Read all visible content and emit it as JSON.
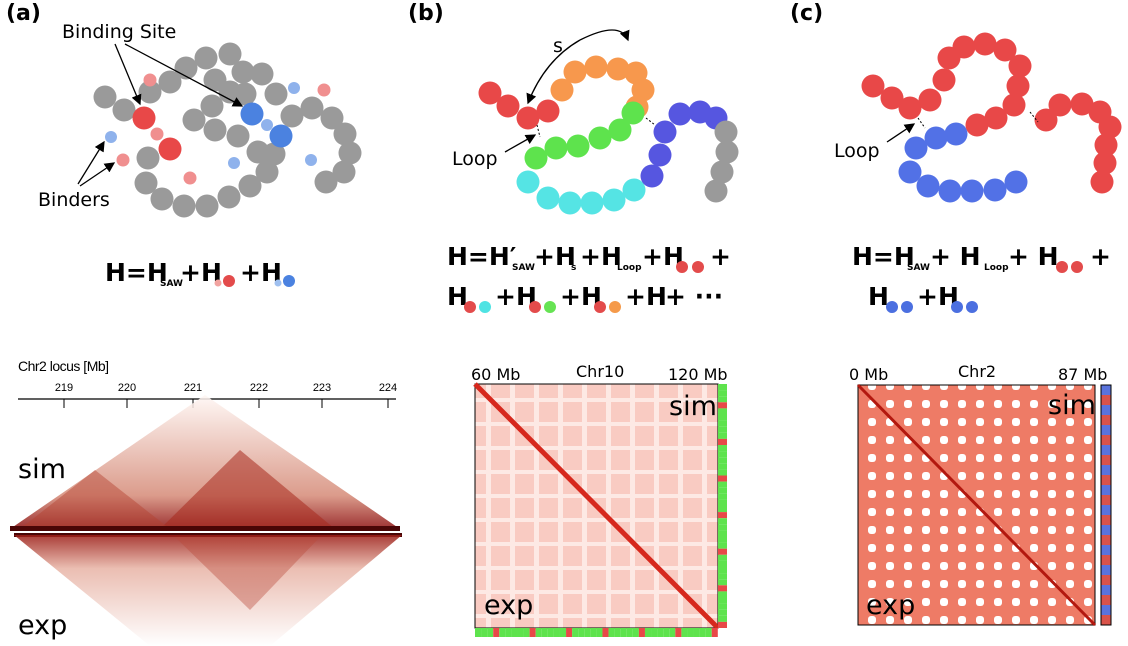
{
  "panel_a": {
    "label": "(a)",
    "binding_site": "Binding Site",
    "binders": "Binders",
    "formula": [
      "H=H",
      "SAW",
      "+H",
      "+H"
    ],
    "axis_title": "Chr2 locus [Mb]",
    "ticks": [
      "219",
      "220",
      "221",
      "222",
      "223",
      "224"
    ],
    "sim": "sim",
    "exp": "exp"
  },
  "panel_b": {
    "label": "(b)",
    "s": "s",
    "loop": "Loop",
    "formula_1": [
      "H=H′",
      "SAW",
      "+H",
      "s",
      "+H",
      "Loop",
      "+H",
      "+"
    ],
    "formula_2": [
      "H",
      "+H",
      "+H",
      "+H",
      "+ ···"
    ],
    "start": "60 Mb",
    "chromosome": "Chr10",
    "end": "120 Mb",
    "sim": "sim",
    "exp": "exp"
  },
  "panel_c": {
    "label": "(c)",
    "loop": "Loop",
    "formula_1": [
      "H=H",
      "SAW",
      "+ H",
      "Loop",
      "+ H",
      "+"
    ],
    "formula_2": [
      "H",
      "+H"
    ],
    "start": "0 Mb",
    "chromosome": "Chr2",
    "end": "87 Mb",
    "sim": "sim",
    "exp": "exp"
  }
}
